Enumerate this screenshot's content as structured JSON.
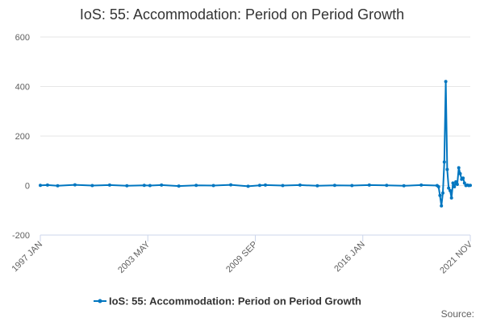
{
  "chart_data": {
    "type": "line",
    "title": "IoS: 55: Accommodation: Period on Period Growth",
    "xlabel": "",
    "ylabel": "",
    "x_tick_labels": [
      "1997 JAN",
      "2003 MAY",
      "2009 SEP",
      "2016 JAN",
      "2021 NOV"
    ],
    "ylim": [
      -200,
      600
    ],
    "y_ticks": [
      -200,
      0,
      200,
      400,
      600
    ],
    "grid": "horizontal",
    "legend": "bottom-center",
    "series": [
      {
        "name": "IoS: 55: Accommodation: Period on Period Growth",
        "color": "#0076c0",
        "points": [
          [
            "1997-01",
            1
          ],
          [
            "1997-06",
            2
          ],
          [
            "1998-01",
            -1
          ],
          [
            "1999-01",
            3
          ],
          [
            "2000-01",
            0
          ],
          [
            "2001-01",
            2
          ],
          [
            "2002-01",
            -1
          ],
          [
            "2003-01",
            1
          ],
          [
            "2003-05",
            0
          ],
          [
            "2004-01",
            2
          ],
          [
            "2005-01",
            -2
          ],
          [
            "2006-01",
            1
          ],
          [
            "2007-01",
            0
          ],
          [
            "2008-01",
            3
          ],
          [
            "2009-01",
            -3
          ],
          [
            "2009-09",
            1
          ],
          [
            "2010-01",
            2
          ],
          [
            "2011-01",
            0
          ],
          [
            "2012-01",
            2
          ],
          [
            "2013-01",
            -1
          ],
          [
            "2014-01",
            1
          ],
          [
            "2015-01",
            0
          ],
          [
            "2016-01",
            2
          ],
          [
            "2017-01",
            1
          ],
          [
            "2018-01",
            -1
          ],
          [
            "2019-01",
            2
          ],
          [
            "2019-12",
            0
          ],
          [
            "2020-01",
            -5
          ],
          [
            "2020-02",
            -40
          ],
          [
            "2020-03",
            -82
          ],
          [
            "2020-04",
            -30
          ],
          [
            "2020-05",
            95
          ],
          [
            "2020-06",
            420
          ],
          [
            "2020-07",
            65
          ],
          [
            "2020-08",
            -10
          ],
          [
            "2020-09",
            -20
          ],
          [
            "2020-10",
            -50
          ],
          [
            "2020-11",
            10
          ],
          [
            "2020-12",
            -5
          ],
          [
            "2021-01",
            15
          ],
          [
            "2021-02",
            5
          ],
          [
            "2021-03",
            72
          ],
          [
            "2021-04",
            48
          ],
          [
            "2021-05",
            25
          ],
          [
            "2021-06",
            30
          ],
          [
            "2021-07",
            10
          ],
          [
            "2021-08",
            0
          ],
          [
            "2021-09",
            2
          ],
          [
            "2021-10",
            0
          ],
          [
            "2021-11",
            1
          ]
        ]
      }
    ]
  },
  "footer": {
    "source_label": "Source:"
  }
}
